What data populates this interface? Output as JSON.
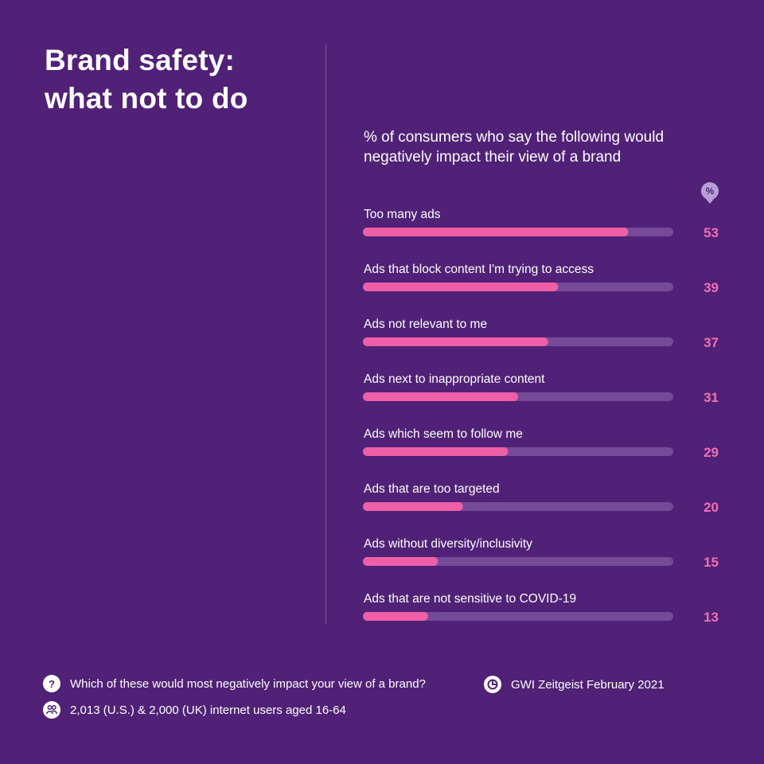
{
  "title": {
    "line1": "Brand safety:",
    "line2": "what not to do"
  },
  "subtitle": {
    "line1": "% of consumers who say the following would",
    "line2": "negatively impact their view of a brand"
  },
  "unit_badge": "%",
  "colors": {
    "background": "#512177",
    "bar_fill": "#ee5fa7",
    "bar_track": "#744a99",
    "value_text": "#f271b2"
  },
  "chart_data": {
    "type": "bar",
    "orientation": "horizontal",
    "unit": "%",
    "xlim": [
      0,
      62
    ],
    "grid": false,
    "categories": [
      "Too many ads",
      "Ads that block content I'm trying to access",
      "Ads not relevant to me",
      "Ads next to inappropriate content",
      "Ads which seem to follow me",
      "Ads that are too targeted",
      "Ads without diversity/inclusivity",
      "Ads that are not sensitive to COVID-19"
    ],
    "values": [
      53,
      39,
      37,
      31,
      29,
      20,
      15,
      13
    ]
  },
  "footer": {
    "question_icon": "question-icon",
    "question": "Which of these would most negatively impact your view of a brand?",
    "source_icon": "gwi-logo-icon",
    "source": "GWI Zeitgeist February 2021",
    "sample_icon": "people-icon",
    "sample": "2,013 (U.S.) & 2,000 (UK) internet users aged 16-64"
  }
}
